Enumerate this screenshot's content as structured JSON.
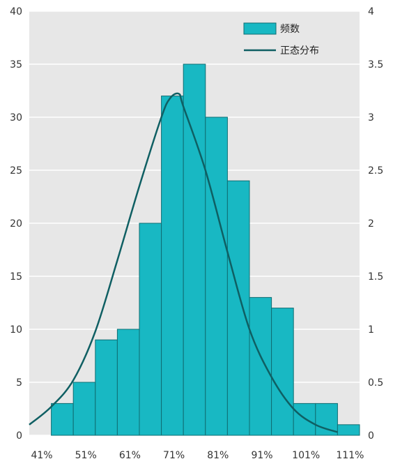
{
  "chart_data": {
    "type": "bar",
    "title": "",
    "xlabel": "",
    "ylabel": "",
    "x_tick_labels": [
      "41%",
      "51%",
      "61%",
      "71%",
      "81%",
      "91%",
      "101%",
      "111%"
    ],
    "bin_edges_pct": [
      46,
      51,
      56,
      61,
      66,
      71,
      76,
      81,
      86,
      91,
      96,
      101,
      106,
      111
    ],
    "frequencies": [
      3,
      5,
      9,
      10,
      20,
      32,
      35,
      30,
      24,
      13,
      12,
      3,
      3,
      1
    ],
    "ylim_left": [
      0,
      40
    ],
    "left_ticks": [
      "0",
      "5",
      "10",
      "15",
      "20",
      "25",
      "30",
      "35",
      "40"
    ],
    "ylim_right": [
      0,
      4
    ],
    "right_ticks": [
      "0",
      "0.5",
      "1",
      "1.5",
      "2",
      "2.5",
      "3",
      "3.5",
      "4"
    ],
    "series": [
      {
        "name": "频数",
        "type": "bar",
        "color": "#18b8c3"
      },
      {
        "name": "正态分布",
        "type": "line",
        "color": "#0f5f63",
        "axis": "right",
        "x": [
          41,
          46,
          51,
          56,
          61,
          66,
          71,
          73,
          75,
          76,
          81,
          86,
          91,
          96,
          101,
          106,
          111
        ],
        "y": [
          0.1,
          0.27,
          0.52,
          0.98,
          1.65,
          2.35,
          3.0,
          3.18,
          3.22,
          3.1,
          2.5,
          1.73,
          1.0,
          0.55,
          0.25,
          0.1,
          0.03
        ]
      }
    ],
    "grid": "horizontal",
    "legend_position": "top-right"
  }
}
